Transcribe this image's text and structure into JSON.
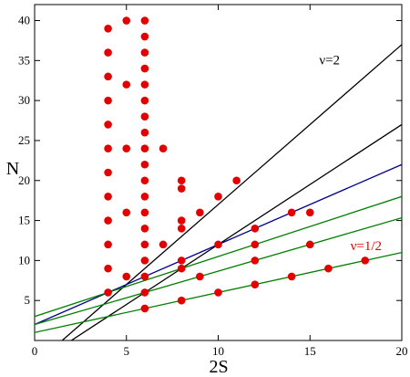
{
  "chart_data": {
    "type": "scatter",
    "xlabel": "2S",
    "ylabel": "N",
    "xlim": [
      0,
      20
    ],
    "ylim": [
      0,
      42
    ],
    "x_ticks": [
      "0",
      "5",
      "10",
      "15",
      "20"
    ],
    "y_ticks": [
      "5",
      "10",
      "15",
      "20",
      "25",
      "30",
      "35",
      "40"
    ],
    "x_tick_values": [
      0,
      5,
      10,
      15,
      20
    ],
    "y_tick_values": [
      5,
      10,
      15,
      20,
      25,
      30,
      35,
      40
    ],
    "grid": false,
    "point_color": "#e30000",
    "points": [
      [
        4,
        6
      ],
      [
        4,
        9
      ],
      [
        4,
        12
      ],
      [
        4,
        15
      ],
      [
        4,
        18
      ],
      [
        4,
        21
      ],
      [
        4,
        24
      ],
      [
        4,
        27
      ],
      [
        4,
        30
      ],
      [
        4,
        33
      ],
      [
        4,
        36
      ],
      [
        4,
        39
      ],
      [
        5,
        8
      ],
      [
        5,
        16
      ],
      [
        5,
        24
      ],
      [
        5,
        32
      ],
      [
        5,
        40
      ],
      [
        6,
        4
      ],
      [
        6,
        6
      ],
      [
        6,
        8
      ],
      [
        6,
        10
      ],
      [
        6,
        12
      ],
      [
        6,
        14
      ],
      [
        6,
        16
      ],
      [
        6,
        18
      ],
      [
        6,
        20
      ],
      [
        6,
        22
      ],
      [
        6,
        24
      ],
      [
        6,
        26
      ],
      [
        6,
        28
      ],
      [
        6,
        30
      ],
      [
        6,
        32
      ],
      [
        6,
        34
      ],
      [
        6,
        36
      ],
      [
        6,
        38
      ],
      [
        6,
        40
      ],
      [
        7,
        12
      ],
      [
        7,
        24
      ],
      [
        8,
        5
      ],
      [
        8,
        9
      ],
      [
        8,
        10
      ],
      [
        8,
        14
      ],
      [
        8,
        15
      ],
      [
        8,
        19
      ],
      [
        8,
        20
      ],
      [
        9,
        8
      ],
      [
        9,
        16
      ],
      [
        10,
        6
      ],
      [
        10,
        12
      ],
      [
        10,
        18
      ],
      [
        11,
        20
      ],
      [
        12,
        7
      ],
      [
        12,
        10
      ],
      [
        12,
        12
      ],
      [
        12,
        14
      ],
      [
        14,
        8
      ],
      [
        14,
        16
      ],
      [
        15,
        12
      ],
      [
        15,
        16
      ],
      [
        16,
        9
      ],
      [
        18,
        10
      ]
    ],
    "lines": [
      {
        "color": "#000000",
        "slope": 2,
        "intercept": -3
      },
      {
        "color": "#000000",
        "slope": 1.5,
        "intercept": -3
      },
      {
        "color": "#00008b",
        "slope": 1,
        "intercept": 2
      },
      {
        "color": "#008000",
        "slope": 0.75,
        "intercept": 3
      },
      {
        "color": "#008000",
        "slope": 0.667,
        "intercept": 2
      },
      {
        "color": "#008000",
        "slope": 0.5,
        "intercept": 1
      }
    ],
    "annotations": [
      {
        "text": "ν=2",
        "x": 15.5,
        "y": 34.5,
        "color": "#000000"
      },
      {
        "text": "ν=1/2",
        "x": 17.2,
        "y": 11.3,
        "color": "#e30000"
      }
    ]
  }
}
